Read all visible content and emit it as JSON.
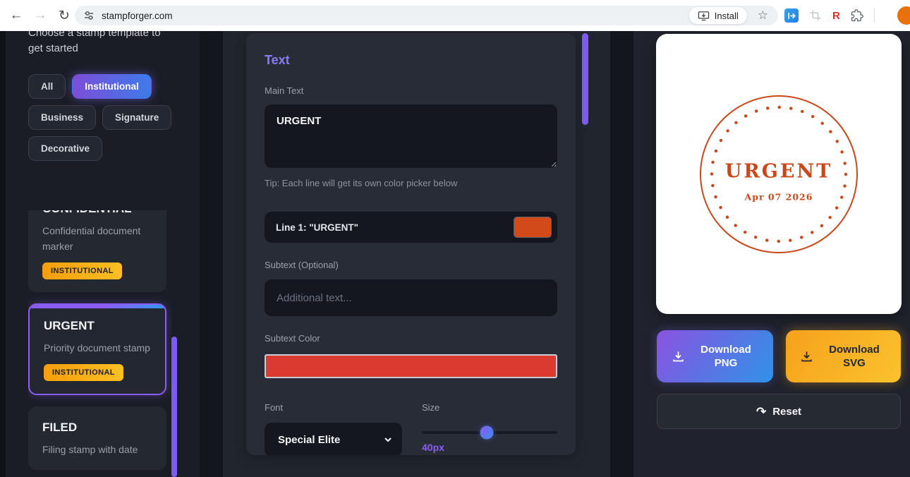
{
  "browser": {
    "url": "stampforger.com",
    "install_label": "Install"
  },
  "sidebar": {
    "heading": "Choose a stamp template to get started",
    "filters": [
      "All",
      "Institutional",
      "Business",
      "Signature",
      "Decorative"
    ],
    "templates": [
      {
        "title": "CONFIDENTIAL",
        "description": "Confidential document marker",
        "badge": "INSTITUTIONAL"
      },
      {
        "title": "URGENT",
        "description": "Priority document stamp",
        "badge": "INSTITUTIONAL"
      },
      {
        "title": "FILED",
        "description": "Filing stamp with date"
      }
    ]
  },
  "editor": {
    "section_title": "Text",
    "main_text_label": "Main Text",
    "main_text_value": "URGENT",
    "tip": "Tip: Each line will get its own color picker below",
    "line1_label": "Line 1: \"URGENT\"",
    "line1_color": "#d2491a",
    "subtext_label": "Subtext (Optional)",
    "subtext_placeholder": "Additional text...",
    "subtext_color_label": "Subtext Color",
    "subtext_color": "#da3a30",
    "font_label": "Font",
    "font_value": "Special Elite",
    "size_label": "Size",
    "size_value": "40px",
    "size_percent": 48
  },
  "preview": {
    "stamp_main": "URGENT",
    "stamp_date": "Apr 07 2026",
    "stamp_color": "#c8481c",
    "download_png_label": "Download PNG",
    "download_svg_label": "Download SVG",
    "reset_label": "Reset"
  }
}
